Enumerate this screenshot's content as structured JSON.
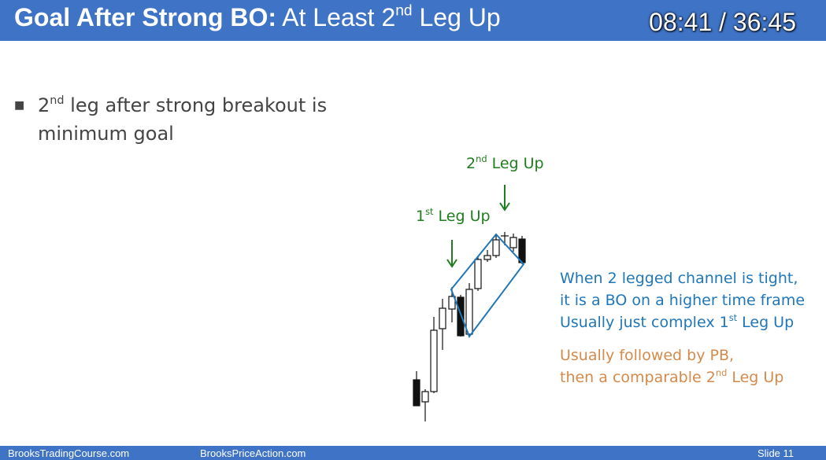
{
  "header": {
    "title_bold": "Goal After Strong BO:",
    "title_part1": "At Least 2",
    "title_sup": "nd",
    "title_part2": " Leg Up",
    "timer": "08:41 / 36:45"
  },
  "bullet": {
    "part1": "2",
    "sup": "nd",
    "part2": " leg after strong breakout is minimum goal"
  },
  "diagram": {
    "leg1": {
      "num": "1",
      "sup": "st",
      "text": " Leg Up"
    },
    "leg2": {
      "num": "2",
      "sup": "nd",
      "text": " Leg Up"
    }
  },
  "notes": {
    "blue": [
      "When 2 legged channel is tight,",
      "it is a BO on a higher time frame"
    ],
    "blue_last": {
      "part1": "Usually just complex 1",
      "sup": "st",
      "part2": " Leg Up"
    },
    "orange": [
      "Usually followed by PB,"
    ],
    "orange_last": {
      "part1": "then a comparable 2",
      "sup": "nd",
      "part2": " Leg Up"
    }
  },
  "footer": {
    "left": "BrooksTradingCourse.com",
    "center": "BrooksPriceAction.com",
    "slide": "Slide  11"
  }
}
